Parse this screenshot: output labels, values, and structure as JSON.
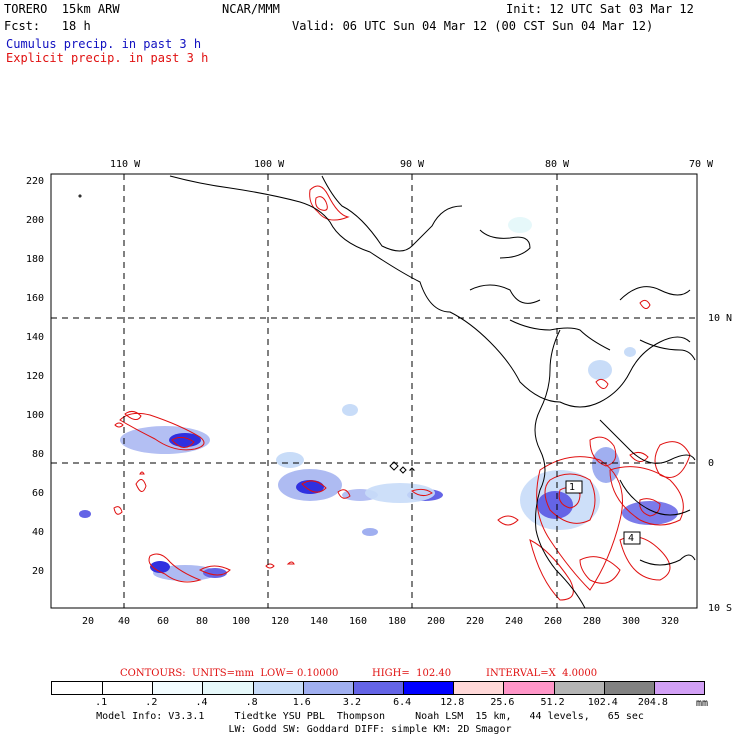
{
  "header": {
    "model": "TORERO  15km ARW",
    "center": "NCAR/MMM",
    "init": "Init: 12 UTC Sat 03 Mar 12",
    "fcst": "Fcst:   18 h",
    "valid": "Valid: 06 UTC Sun 04 Mar 12 (00 CST Sun 04 Mar 12)",
    "field1": "Cumulus precip. in past 3 h",
    "field2": "Explicit precip. in past 3 h"
  },
  "colors": {
    "field1": "#1010c0",
    "field2": "#e01010",
    "contour": "#e01010",
    "coast": "#000000",
    "grid": "#000000"
  },
  "map": {
    "top_lon_labels": [
      "110 W",
      "100 W",
      "90 W",
      "80 W",
      "70 W"
    ],
    "right_lat_labels": [
      "10 N",
      "0",
      "10 S"
    ],
    "y_ticks": [
      "220",
      "200",
      "180",
      "160",
      "140",
      "120",
      "100",
      "80",
      "60",
      "40",
      "20"
    ],
    "x_ticks": [
      "20",
      "40",
      "60",
      "80",
      "100",
      "120",
      "140",
      "160",
      "180",
      "200",
      "220",
      "240",
      "260",
      "280",
      "300",
      "320"
    ],
    "contour_labels": [
      "1",
      "4"
    ]
  },
  "contour_info": {
    "contours": "CONTOURS:  UNITS=mm  LOW= 0.10000",
    "high": "HIGH=  102.40",
    "interval": "INTERVAL=X  4.0000"
  },
  "color_key": {
    "thresholds": [
      ".1",
      ".2",
      ".4",
      ".8",
      "1.6",
      "3.2",
      "6.4",
      "12.8",
      "25.6",
      "51.2",
      "102.4",
      "204.8"
    ],
    "colors": [
      "#ffffff",
      "#ffffff",
      "#f2fcff",
      "#e6f8fa",
      "#c8dcf8",
      "#a0aff0",
      "#6464e6",
      "#0000ff",
      "#ffd8d8",
      "#ff96c8",
      "#b4b4b4",
      "#828282",
      "#d2a0f5"
    ],
    "units": "mm"
  },
  "footer": {
    "line1": "Model Info: V3.3.1     Tiedtke YSU PBL  Thompson     Noah LSM  15 km,   44 levels,   65 sec",
    "line2": "LW: Godd SW: Goddard DIFF: simple KM: 2D Smagor"
  }
}
